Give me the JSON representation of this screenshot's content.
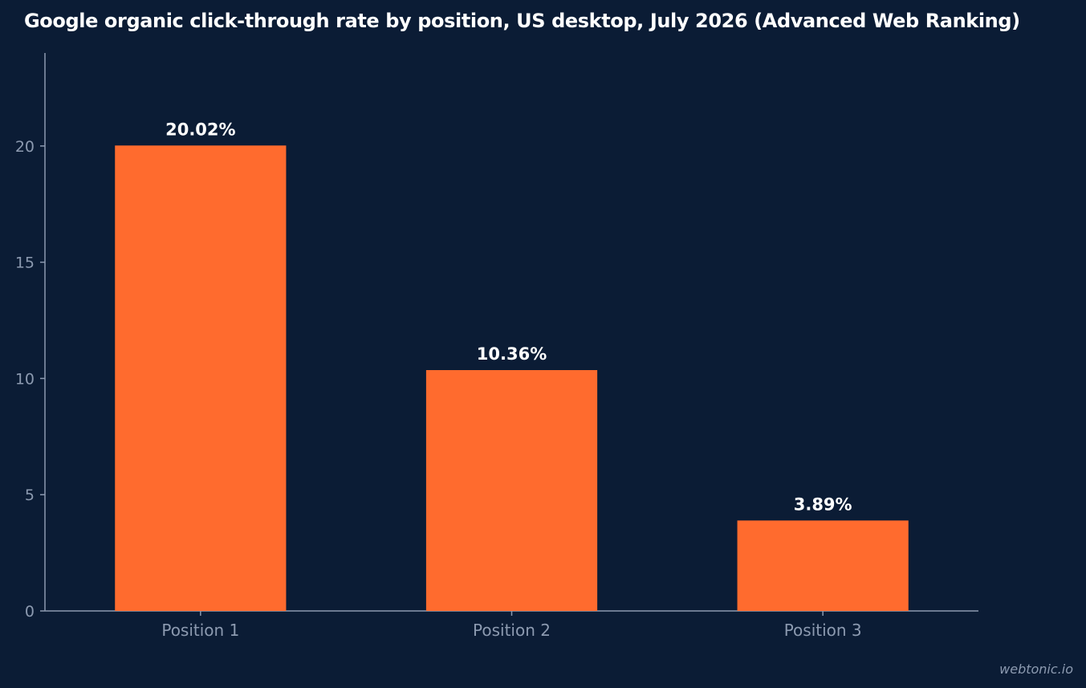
{
  "chart_data": {
    "type": "bar",
    "title": "Google organic click-through rate by position, US desktop, July 2026 (Advanced Web Ranking)",
    "categories": [
      "Position 1",
      "Position 2",
      "Position 3"
    ],
    "values": [
      20.02,
      10.36,
      3.89
    ],
    "data_labels": [
      "20.02%",
      "10.36%",
      "3.89%"
    ],
    "xlabel": "",
    "ylabel": "",
    "ylim": [
      0,
      24
    ],
    "yticks": [
      0,
      5,
      10,
      15,
      20
    ],
    "grid": false,
    "legend": "none",
    "bar_color": "#ff6b2e",
    "background_color": "#0b1c35",
    "axis_color": "#8c9ab0"
  },
  "watermark": "webtonic.io"
}
